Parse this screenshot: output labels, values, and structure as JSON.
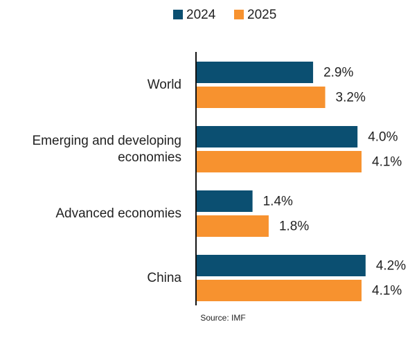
{
  "chart_data": {
    "type": "bar",
    "orientation": "horizontal",
    "categories": [
      "World",
      "Emerging and developing economies",
      "Advanced economies",
      "China"
    ],
    "series": [
      {
        "name": "2024",
        "color": "#0b4f71",
        "values": [
          2.9,
          4.0,
          1.4,
          4.2
        ],
        "value_labels": [
          "2.9%",
          "4.0%",
          "1.4%",
          "4.2%"
        ]
      },
      {
        "name": "2025",
        "color": "#f7922f",
        "values": [
          3.2,
          4.1,
          1.8,
          4.1
        ],
        "value_labels": [
          "3.2%",
          "4.1%",
          "1.8%",
          "4.1%"
        ]
      }
    ],
    "xlim": [
      0,
      5
    ],
    "legend": "top",
    "source": "Source: IMF"
  }
}
